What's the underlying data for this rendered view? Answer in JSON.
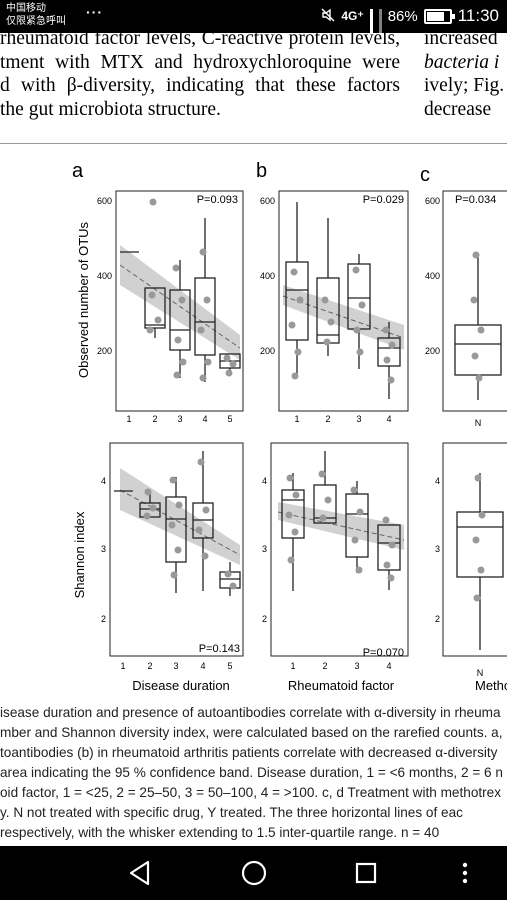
{
  "status_bar": {
    "carrier_line1": "中国移动",
    "carrier_line2": "仅限紧急呼叫",
    "more": "···",
    "network": "4G⁺",
    "battery": "86%",
    "battery_level": 0.86,
    "time": "11:30"
  },
  "paper": {
    "main_lines": [
      "rheumatoid factor levels, C-reactive protein levels,",
      "tment with MTX and hydroxychloroquine were",
      "d with β-diversity, indicating that these factors",
      "the gut microbiota structure."
    ],
    "side_lines": [
      "increased",
      "bacteria i",
      "ively; Fig.",
      "decrease"
    ]
  },
  "figure": {
    "panel_labels": [
      "a",
      "b",
      "c"
    ],
    "top_ylabel": "Observed number of OTUs",
    "bottom_ylabel": "Shannon index",
    "xlabels": [
      "Disease duration",
      "Rheumatoid factor",
      "Metho"
    ],
    "top_yticks": [
      "200",
      "400",
      "600"
    ],
    "bottom_yticks": [
      "2",
      "3",
      "4"
    ],
    "p_values": [
      "P=0.093",
      "P=0.029",
      "P=0.034",
      "P=0.143",
      "P=0.070"
    ],
    "x_ticks_a": [
      "1",
      "2",
      "3",
      "4",
      "5"
    ],
    "x_ticks_b": [
      "1",
      "2",
      "3",
      "4"
    ],
    "x_ticks_c": [
      "N"
    ]
  },
  "caption": {
    "lines": [
      "isease duration and presence of autoantibodies correlate with α-diversity in rheuma",
      "mber and Shannon diversity index, were calculated based on the rarefied counts. a,",
      "toantibodies (b) in rheumatoid arthritis patients correlate with decreased α-diversity",
      "area indicating the 95 % confidence band. Disease duration, 1 = <6 months, 2 = 6 n",
      "oid factor, 1 = <25, 2 = 25–50, 3 = 50–100, 4 = >100. c, d Treatment with methotrex",
      "y. N not treated with specific drug, Y treated. The three horizontal lines of eac",
      "respectively, with the whisker extending to 1.5 inter-quartile range. n = 40"
    ]
  },
  "nav": {
    "back": "back",
    "home": "home",
    "recent": "recent apps",
    "more": "more"
  }
}
